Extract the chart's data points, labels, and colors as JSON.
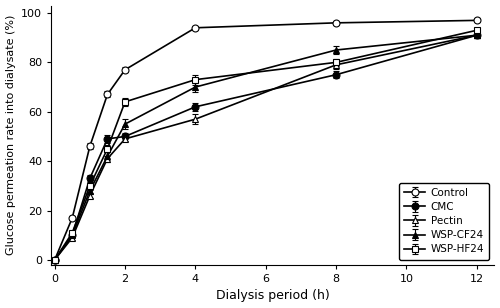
{
  "x_ticks": [
    0,
    2,
    4,
    6,
    8,
    10,
    12
  ],
  "xlim": [
    -0.1,
    12.5
  ],
  "ylim": [
    -2,
    103
  ],
  "y_ticks": [
    0,
    20,
    40,
    60,
    80,
    100
  ],
  "xlabel": "Dialysis period (h)",
  "ylabel": "Glucose permeation rate into dialysate (%)",
  "series": [
    {
      "label": "Control",
      "x": [
        0,
        0.5,
        1,
        1.5,
        2,
        4,
        8,
        12
      ],
      "y": [
        0,
        17,
        46,
        67,
        77,
        94,
        96,
        97
      ],
      "yerr": [
        0,
        0.8,
        1.2,
        1.2,
        1.0,
        0.8,
        0.8,
        0.8
      ],
      "marker": "o",
      "fillstyle": "none",
      "linewidth": 1.2
    },
    {
      "label": "CMC",
      "x": [
        0,
        0.5,
        1,
        1.5,
        2,
        4,
        8,
        12
      ],
      "y": [
        0,
        10,
        33,
        49,
        50,
        62,
        75,
        91
      ],
      "yerr": [
        0,
        0.8,
        1.2,
        1.5,
        1.2,
        1.5,
        1.5,
        1.0
      ],
      "marker": "o",
      "fillstyle": "full",
      "linewidth": 1.2
    },
    {
      "label": "Pectin",
      "x": [
        0,
        0.5,
        1,
        1.5,
        2,
        4,
        8,
        12
      ],
      "y": [
        0,
        9,
        26,
        41,
        49,
        57,
        79,
        91
      ],
      "yerr": [
        0,
        0.8,
        1.0,
        1.2,
        1.0,
        2.0,
        1.5,
        1.0
      ],
      "marker": "^",
      "fillstyle": "none",
      "linewidth": 1.2
    },
    {
      "label": "WSP-CF24",
      "x": [
        0,
        0.5,
        1,
        1.5,
        2,
        4,
        8,
        12
      ],
      "y": [
        0,
        10,
        28,
        42,
        55,
        70,
        85,
        91
      ],
      "yerr": [
        0,
        0.8,
        1.5,
        1.5,
        2.0,
        2.0,
        1.5,
        1.0
      ],
      "marker": "^",
      "fillstyle": "full",
      "linewidth": 1.2
    },
    {
      "label": "WSP-HF24",
      "x": [
        0,
        0.5,
        1,
        1.5,
        2,
        4,
        8,
        12
      ],
      "y": [
        0,
        11,
        30,
        45,
        64,
        73,
        80,
        93
      ],
      "yerr": [
        0,
        0.8,
        1.5,
        1.5,
        1.5,
        2.0,
        1.5,
        1.0
      ],
      "marker": "s",
      "fillstyle": "none",
      "linewidth": 1.2
    }
  ],
  "markersize": 5,
  "capsize": 2,
  "elinewidth": 0.8,
  "xlabel_fontsize": 9,
  "ylabel_fontsize": 8,
  "tick_labelsize": 8,
  "legend_fontsize": 7.5
}
